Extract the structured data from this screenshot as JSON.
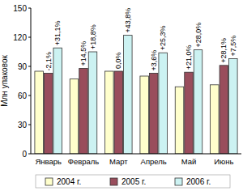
{
  "chart_data": {
    "type": "bar",
    "y_label": "Млн упаковок",
    "categories": [
      "Январь",
      "Февраль",
      "Март",
      "Апрель",
      "Май",
      "Июнь"
    ],
    "series": [
      {
        "name": "2004 г.",
        "color": "#ffffcc",
        "values": [
          85,
          77,
          85,
          80,
          69,
          71
        ]
      },
      {
        "name": "2005 г.",
        "color": "#994d5c",
        "values": [
          83,
          88,
          85,
          83,
          84,
          91
        ]
      },
      {
        "name": "2006 г.",
        "color": "#ccf2f2",
        "values": [
          109,
          105,
          122,
          104,
          107,
          98
        ]
      }
    ],
    "annotations": [
      {
        "series": 1,
        "texts": [
          "-2,1%",
          "+14,5%",
          "0,0%",
          "+3,6%",
          "+21,0%",
          "+28,1%"
        ]
      },
      {
        "series": 2,
        "texts": [
          "+31,1%",
          "+18,8%",
          "+43,8%",
          "+25,3%",
          "+28,0%",
          "+7,5%"
        ]
      }
    ],
    "ylim": [
      0,
      150
    ],
    "yticks": [
      0,
      30,
      60,
      90,
      120,
      150
    ],
    "grid": false,
    "legend": "bottom"
  }
}
